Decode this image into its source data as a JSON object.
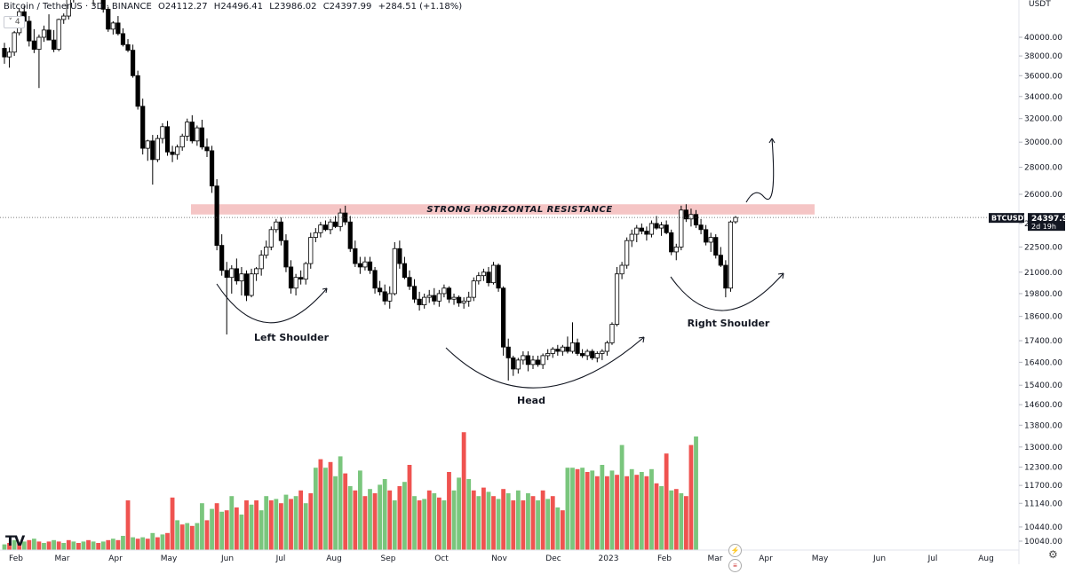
{
  "header": {
    "symbol": "Bitcoin / TetherUS · 3D · BINANCE",
    "open": "O24112.27",
    "high": "H24496.41",
    "low": "L23986.02",
    "close": "C24397.99",
    "change": "+284.51 (+1.18%)",
    "indicator_count": "4"
  },
  "currency_button": "USDT",
  "price_tag": {
    "symbol": "BTCUSDT",
    "price": "24397.99",
    "countdown": "2d 19h"
  },
  "annotations": {
    "resistance": "STRONG HORIZONTAL RESISTANCE",
    "left_shoulder": "Left Shoulder",
    "head": "Head",
    "right_shoulder": "Right Shoulder"
  },
  "colors": {
    "up": "#26a69a",
    "down": "#000000",
    "vol_up": "#7ac67d",
    "vol_down": "#ef5350",
    "resistance_band": "#f5c5c5"
  },
  "chart_data": {
    "type": "candlestick",
    "y_axis": {
      "scale": "log",
      "ticks": [
        10040,
        10440,
        11140,
        11700,
        12300,
        13000,
        13800,
        14600,
        15400,
        16400,
        17400,
        18600,
        19800,
        21000,
        22500,
        24000,
        26000,
        28000,
        30000,
        32000,
        34000,
        36000,
        38000,
        40000
      ],
      "tick_labels": [
        "10040.00",
        "10440.00",
        "11140.00",
        "11700.00",
        "12300.00",
        "13000.00",
        "13800.00",
        "14600.00",
        "15400.00",
        "16400.00",
        "17400.00",
        "18600.00",
        "19800.00",
        "21000.00",
        "22500.00",
        "24000.00",
        "26000.00",
        "28000.00",
        "30000.00",
        "32000.00",
        "34000.00",
        "36000.00",
        "38000.00",
        "40000.00"
      ]
    },
    "x_axis": {
      "labels": [
        "Feb",
        "Mar",
        "Apr",
        "May",
        "Jun",
        "Jul",
        "Aug",
        "Sep",
        "Oct",
        "Nov",
        "Dec",
        "2023",
        "Feb",
        "Mar",
        "Apr",
        "May",
        "Jun",
        "Jul",
        "Aug"
      ]
    },
    "last_price": 24397.99,
    "resistance_zone": [
      24600,
      25300
    ],
    "candles": [
      [
        38800,
        39400,
        37200,
        37900
      ],
      [
        37900,
        38900,
        36800,
        38400
      ],
      [
        38400,
        40700,
        38000,
        40500
      ],
      [
        40500,
        43300,
        40200,
        42900
      ],
      [
        42900,
        43600,
        41200,
        41800
      ],
      [
        41800,
        42400,
        39000,
        39600
      ],
      [
        39600,
        40900,
        38300,
        38700
      ],
      [
        38700,
        40300,
        34800,
        40000
      ],
      [
        40000,
        41300,
        39500,
        40800
      ],
      [
        40800,
        42600,
        39700,
        39700
      ],
      [
        39700,
        40800,
        38400,
        38700
      ],
      [
        38700,
        42100,
        38500,
        42000
      ],
      [
        42000,
        42700,
        41500,
        42400
      ],
      [
        42400,
        44800,
        42000,
        44500
      ],
      [
        44500,
        45600,
        44000,
        45300
      ],
      [
        45300,
        47400,
        45000,
        47000
      ],
      [
        47000,
        47700,
        45700,
        46100
      ],
      [
        46100,
        46700,
        44300,
        44600
      ],
      [
        44600,
        45100,
        43700,
        44900
      ],
      [
        44900,
        45500,
        44400,
        45000
      ],
      [
        45000,
        45400,
        42800,
        43200
      ],
      [
        43200,
        43500,
        40600,
        40900
      ],
      [
        40900,
        41800,
        40300,
        41600
      ],
      [
        41600,
        42400,
        40200,
        40400
      ],
      [
        40400,
        41000,
        39000,
        39200
      ],
      [
        39200,
        39800,
        38400,
        38600
      ],
      [
        38600,
        39200,
        35800,
        36000
      ],
      [
        36000,
        36500,
        32800,
        33100
      ],
      [
        33100,
        33800,
        29000,
        29500
      ],
      [
        29500,
        30200,
        28500,
        30100
      ],
      [
        30100,
        30600,
        26700,
        28600
      ],
      [
        28600,
        30600,
        28400,
        30300
      ],
      [
        30300,
        31600,
        29900,
        31300
      ],
      [
        31300,
        31800,
        28900,
        29200
      ],
      [
        29200,
        29700,
        28400,
        29000
      ],
      [
        29000,
        29800,
        28600,
        29600
      ],
      [
        29600,
        30700,
        29300,
        30500
      ],
      [
        30500,
        32000,
        30100,
        31700
      ],
      [
        31700,
        32300,
        29900,
        30100
      ],
      [
        30100,
        31400,
        29700,
        31200
      ],
      [
        31200,
        31900,
        29400,
        29600
      ],
      [
        29600,
        30300,
        28800,
        29300
      ],
      [
        29300,
        29700,
        26100,
        26600
      ],
      [
        26600,
        27100,
        22300,
        22600
      ],
      [
        22600,
        23300,
        20800,
        21100
      ],
      [
        21100,
        21600,
        17700,
        20700
      ],
      [
        20700,
        21400,
        19800,
        21200
      ],
      [
        21200,
        21800,
        20300,
        20500
      ],
      [
        20500,
        21300,
        19700,
        20900
      ],
      [
        20900,
        21100,
        19400,
        19700
      ],
      [
        19700,
        21200,
        19600,
        20900
      ],
      [
        20900,
        21300,
        20500,
        21200
      ],
      [
        21200,
        22300,
        20800,
        22000
      ],
      [
        22000,
        22900,
        21800,
        22500
      ],
      [
        22500,
        23800,
        22300,
        23600
      ],
      [
        23600,
        24300,
        23400,
        24100
      ],
      [
        24100,
        24400,
        22600,
        22900
      ],
      [
        22900,
        23300,
        21000,
        21300
      ],
      [
        21300,
        21700,
        19800,
        20100
      ],
      [
        20100,
        20900,
        19700,
        20700
      ],
      [
        20700,
        21100,
        20300,
        20600
      ],
      [
        20600,
        21600,
        20300,
        21500
      ],
      [
        21500,
        23400,
        21200,
        23100
      ],
      [
        23100,
        23700,
        22800,
        23400
      ],
      [
        23400,
        24100,
        23100,
        23900
      ],
      [
        23900,
        24200,
        23500,
        23600
      ],
      [
        23600,
        24300,
        23300,
        24100
      ],
      [
        24100,
        24500,
        23700,
        23800
      ],
      [
        23800,
        25000,
        23500,
        24700
      ],
      [
        24700,
        25200,
        23900,
        24100
      ],
      [
        24100,
        24500,
        22200,
        22400
      ],
      [
        22400,
        22900,
        21300,
        21500
      ],
      [
        21500,
        21900,
        20900,
        21300
      ],
      [
        21300,
        21900,
        21100,
        21600
      ],
      [
        21600,
        21900,
        20900,
        21100
      ],
      [
        21100,
        21300,
        19800,
        20100
      ],
      [
        20100,
        20500,
        19700,
        19900
      ],
      [
        19900,
        20300,
        19200,
        19400
      ],
      [
        19400,
        20200,
        19000,
        19800
      ],
      [
        19800,
        22800,
        19700,
        22400
      ],
      [
        22400,
        22900,
        21200,
        21500
      ],
      [
        21500,
        21900,
        20600,
        20700
      ],
      [
        20700,
        21100,
        20000,
        20200
      ],
      [
        20200,
        20600,
        19300,
        19500
      ],
      [
        19500,
        19900,
        18900,
        19200
      ],
      [
        19200,
        19800,
        19000,
        19600
      ],
      [
        19600,
        20000,
        19300,
        19700
      ],
      [
        19700,
        20100,
        19200,
        19400
      ],
      [
        19400,
        20000,
        19100,
        19800
      ],
      [
        19800,
        20300,
        19600,
        20100
      ],
      [
        20100,
        20200,
        19300,
        19500
      ],
      [
        19500,
        19800,
        19200,
        19600
      ],
      [
        19600,
        19700,
        19100,
        19300
      ],
      [
        19300,
        19600,
        19000,
        19400
      ],
      [
        19400,
        19900,
        19100,
        19600
      ],
      [
        19600,
        20700,
        19400,
        20500
      ],
      [
        20500,
        21000,
        20300,
        20800
      ],
      [
        20800,
        21200,
        20500,
        21000
      ],
      [
        21000,
        21300,
        20200,
        20400
      ],
      [
        20400,
        21600,
        20300,
        21400
      ],
      [
        21400,
        21500,
        19900,
        20100
      ],
      [
        20100,
        20200,
        16700,
        17100
      ],
      [
        17100,
        17500,
        15600,
        16600
      ],
      [
        16600,
        16700,
        15800,
        16100
      ],
      [
        16100,
        16600,
        15900,
        16500
      ],
      [
        16500,
        16900,
        16300,
        16700
      ],
      [
        16700,
        16900,
        16000,
        16300
      ],
      [
        16300,
        16700,
        16100,
        16500
      ],
      [
        16500,
        16700,
        16200,
        16300
      ],
      [
        16300,
        16800,
        16100,
        16700
      ],
      [
        16700,
        17000,
        16500,
        16800
      ],
      [
        16800,
        17100,
        16600,
        17000
      ],
      [
        17000,
        17200,
        16700,
        16900
      ],
      [
        16900,
        17200,
        16700,
        17100
      ],
      [
        17100,
        17600,
        16800,
        16900
      ],
      [
        16900,
        18300,
        16800,
        17300
      ],
      [
        17300,
        17500,
        16700,
        16800
      ],
      [
        16800,
        17000,
        16600,
        16700
      ],
      [
        16700,
        17000,
        16500,
        16900
      ],
      [
        16900,
        17000,
        16500,
        16600
      ],
      [
        16600,
        16900,
        16400,
        16800
      ],
      [
        16800,
        17000,
        16500,
        16900
      ],
      [
        16900,
        17400,
        16700,
        17300
      ],
      [
        17300,
        18300,
        17200,
        18200
      ],
      [
        18200,
        21300,
        18100,
        20900
      ],
      [
        20900,
        21600,
        20600,
        21400
      ],
      [
        21400,
        23100,
        21200,
        22900
      ],
      [
        22900,
        23600,
        22500,
        23300
      ],
      [
        23300,
        23900,
        22800,
        23700
      ],
      [
        23700,
        24000,
        23300,
        23500
      ],
      [
        23500,
        23800,
        22900,
        23300
      ],
      [
        23300,
        24200,
        23100,
        24000
      ],
      [
        24000,
        24500,
        23600,
        23700
      ],
      [
        23700,
        24100,
        23200,
        23900
      ],
      [
        23900,
        24200,
        23300,
        23400
      ],
      [
        23400,
        23600,
        22000,
        22200
      ],
      [
        22200,
        22700,
        21700,
        22500
      ],
      [
        22500,
        25200,
        22300,
        24900
      ],
      [
        24900,
        25300,
        24100,
        24300
      ],
      [
        24300,
        25000,
        23800,
        24600
      ],
      [
        24600,
        24900,
        23700,
        23900
      ],
      [
        23900,
        24300,
        23300,
        23600
      ],
      [
        23600,
        23900,
        22600,
        22800
      ],
      [
        22800,
        23400,
        22200,
        23100
      ],
      [
        23100,
        23300,
        21800,
        22000
      ],
      [
        22000,
        22500,
        21300,
        21400
      ],
      [
        21400,
        21700,
        19600,
        20100
      ],
      [
        20100,
        24200,
        19900,
        24100
      ],
      [
        24113,
        24497,
        23986,
        24398
      ]
    ],
    "volumes": [
      [
        0.04,
        1
      ],
      [
        0.05,
        0
      ],
      [
        0.07,
        1
      ],
      [
        0.05,
        0
      ],
      [
        0.06,
        1
      ],
      [
        0.07,
        0
      ],
      [
        0.08,
        1
      ],
      [
        0.06,
        0
      ],
      [
        0.05,
        1
      ],
      [
        0.06,
        0
      ],
      [
        0.07,
        1
      ],
      [
        0.06,
        0
      ],
      [
        0.05,
        1
      ],
      [
        0.07,
        0
      ],
      [
        0.06,
        1
      ],
      [
        0.05,
        0
      ],
      [
        0.06,
        1
      ],
      [
        0.07,
        0
      ],
      [
        0.06,
        1
      ],
      [
        0.05,
        0
      ],
      [
        0.06,
        1
      ],
      [
        0.07,
        0
      ],
      [
        0.08,
        1
      ],
      [
        0.07,
        0
      ],
      [
        0.1,
        1
      ],
      [
        0.35,
        0
      ],
      [
        0.09,
        1
      ],
      [
        0.08,
        0
      ],
      [
        0.09,
        1
      ],
      [
        0.08,
        0
      ],
      [
        0.12,
        1
      ],
      [
        0.09,
        0
      ],
      [
        0.11,
        1
      ],
      [
        0.12,
        0
      ],
      [
        0.37,
        0
      ],
      [
        0.21,
        1
      ],
      [
        0.18,
        0
      ],
      [
        0.19,
        1
      ],
      [
        0.17,
        0
      ],
      [
        0.19,
        1
      ],
      [
        0.33,
        1
      ],
      [
        0.21,
        0
      ],
      [
        0.29,
        1
      ],
      [
        0.33,
        0
      ],
      [
        0.27,
        1
      ],
      [
        0.28,
        0
      ],
      [
        0.38,
        1
      ],
      [
        0.3,
        0
      ],
      [
        0.25,
        1
      ],
      [
        0.35,
        0
      ],
      [
        0.32,
        1
      ],
      [
        0.35,
        0
      ],
      [
        0.28,
        1
      ],
      [
        0.38,
        1
      ],
      [
        0.35,
        0
      ],
      [
        0.36,
        1
      ],
      [
        0.33,
        0
      ],
      [
        0.39,
        1
      ],
      [
        0.36,
        0
      ],
      [
        0.38,
        1
      ],
      [
        0.42,
        0
      ],
      [
        0.33,
        1
      ],
      [
        0.4,
        0
      ],
      [
        0.58,
        1
      ],
      [
        0.64,
        0
      ],
      [
        0.58,
        1
      ],
      [
        0.62,
        0
      ],
      [
        0.52,
        1
      ],
      [
        0.66,
        1
      ],
      [
        0.54,
        0
      ],
      [
        0.45,
        1
      ],
      [
        0.42,
        0
      ],
      [
        0.56,
        1
      ],
      [
        0.38,
        0
      ],
      [
        0.43,
        1
      ],
      [
        0.4,
        0
      ],
      [
        0.46,
        1
      ],
      [
        0.5,
        1
      ],
      [
        0.42,
        0
      ],
      [
        0.35,
        1
      ],
      [
        0.45,
        0
      ],
      [
        0.48,
        1
      ],
      [
        0.6,
        0
      ],
      [
        0.38,
        1
      ],
      [
        0.35,
        0
      ],
      [
        0.36,
        1
      ],
      [
        0.42,
        0
      ],
      [
        0.4,
        1
      ],
      [
        0.37,
        0
      ],
      [
        0.35,
        1
      ],
      [
        0.55,
        0
      ],
      [
        0.42,
        1
      ],
      [
        0.51,
        1
      ],
      [
        0.83,
        0
      ],
      [
        0.5,
        1
      ],
      [
        0.42,
        0
      ],
      [
        0.38,
        1
      ],
      [
        0.44,
        0
      ],
      [
        0.41,
        1
      ],
      [
        0.38,
        0
      ],
      [
        0.36,
        1
      ],
      [
        0.43,
        0
      ],
      [
        0.4,
        1
      ],
      [
        0.35,
        0
      ],
      [
        0.42,
        1
      ],
      [
        0.35,
        0
      ],
      [
        0.4,
        1
      ],
      [
        0.38,
        0
      ],
      [
        0.35,
        1
      ],
      [
        0.42,
        0
      ],
      [
        0.36,
        1
      ],
      [
        0.38,
        0
      ],
      [
        0.3,
        1
      ],
      [
        0.28,
        0
      ],
      [
        0.58,
        1
      ],
      [
        0.58,
        1
      ],
      [
        0.57,
        0
      ],
      [
        0.58,
        1
      ],
      [
        0.55,
        0
      ],
      [
        0.56,
        1
      ],
      [
        0.52,
        0
      ],
      [
        0.6,
        1
      ],
      [
        0.52,
        0
      ],
      [
        0.56,
        1
      ],
      [
        0.53,
        0
      ],
      [
        0.74,
        1
      ],
      [
        0.52,
        0
      ],
      [
        0.57,
        1
      ],
      [
        0.53,
        0
      ],
      [
        0.55,
        1
      ],
      [
        0.52,
        0
      ],
      [
        0.57,
        1
      ],
      [
        0.47,
        0
      ],
      [
        0.45,
        1
      ],
      [
        0.68,
        0
      ],
      [
        0.42,
        1
      ],
      [
        0.43,
        0
      ],
      [
        0.4,
        1
      ],
      [
        0.38,
        0
      ],
      [
        0.74,
        0
      ],
      [
        0.8,
        1
      ]
    ]
  }
}
